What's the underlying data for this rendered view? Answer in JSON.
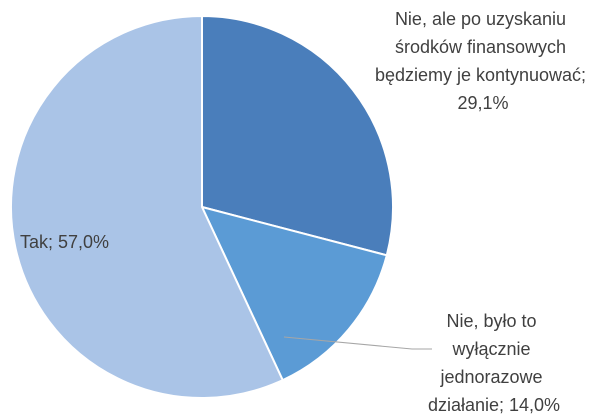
{
  "chart_data": {
    "type": "pie",
    "values": [
      29.1,
      14.0,
      57.0
    ],
    "value_labels": [
      "Nie, ale po uzyskaniu środków finansowych będziemy je kontynuować; 29,1%",
      "Nie, było to wyłącznie jednorazowe działanie; 14,0%",
      "Tak; 57,0%"
    ],
    "colors": [
      "#4a7ebb",
      "#5b9bd5",
      "#aac4e7"
    ]
  }
}
